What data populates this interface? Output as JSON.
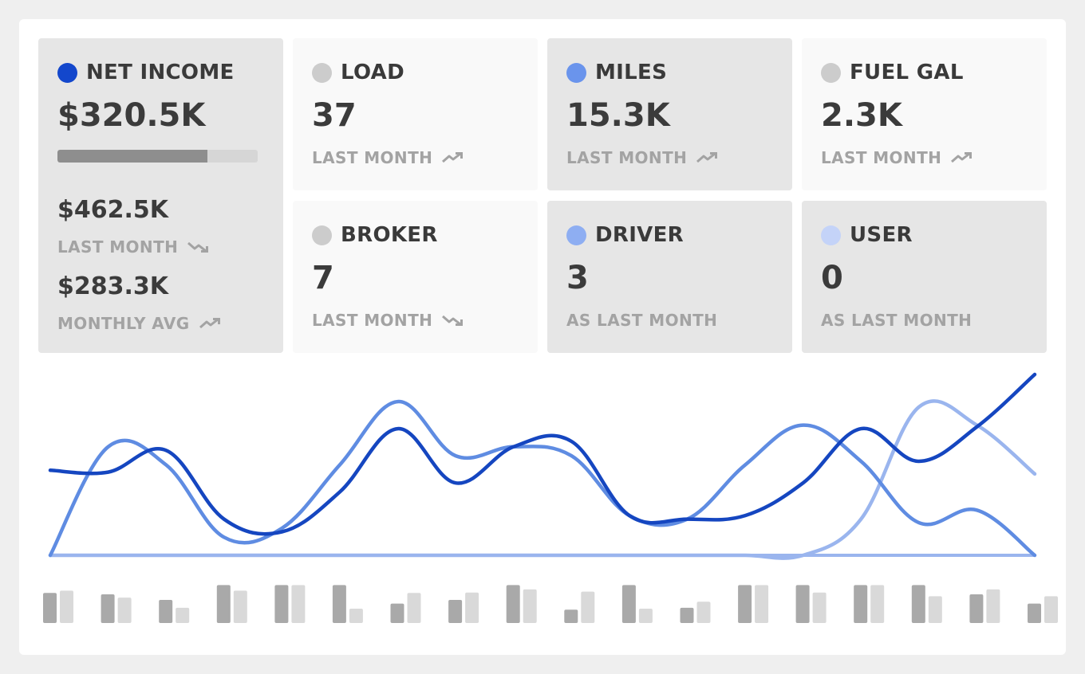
{
  "colors": {
    "net_income": "#1347cc",
    "miles": "#6a94ec",
    "driver": "#8eaef2",
    "user": "#c4d3f8",
    "neutral_dot": "#cccccc",
    "line_dark": "#1546c0",
    "line_mid": "#5f8ce2",
    "line_light": "#9ab5ee",
    "bar_dark": "#a9a9a9",
    "bar_light": "#d9d9d9"
  },
  "net_income": {
    "title": "NET INCOME",
    "value": "$320.5K",
    "progress": 0.75,
    "last_month_value": "$462.5K",
    "last_month_label": "LAST MONTH",
    "last_month_trend": "trend-down-icon",
    "avg_value": "$283.3K",
    "avg_label": "MONTHLY AVG",
    "avg_trend": "trend-up-icon"
  },
  "cards": [
    {
      "key": "load",
      "title": "LOAD",
      "value": "37",
      "sub": "LAST MONTH",
      "trend": "up"
    },
    {
      "key": "miles",
      "title": "MILES",
      "value": "15.3K",
      "sub": "LAST MONTH",
      "trend": "up"
    },
    {
      "key": "fuel",
      "title": "FUEL GAL",
      "value": "2.3K",
      "sub": "LAST MONTH",
      "trend": "up"
    },
    {
      "key": "broker",
      "title": "BROKER",
      "value": "7",
      "sub": "LAST MONTH",
      "trend": "down"
    },
    {
      "key": "driver",
      "title": "DRIVER",
      "value": "3",
      "sub": "AS LAST MONTH",
      "trend": "none"
    },
    {
      "key": "user",
      "title": "USER",
      "value": "0",
      "sub": "AS LAST MONTH",
      "trend": "none"
    }
  ],
  "chart_data": {
    "type": "line",
    "x": [
      0,
      1,
      2,
      3,
      4,
      5,
      6,
      7,
      8,
      9,
      10,
      11,
      12,
      13,
      14,
      15,
      16,
      17
    ],
    "series": [
      {
        "values": [
          0.47,
          0.46,
          0.58,
          0.2,
          0.13,
          0.35,
          0.7,
          0.4,
          0.6,
          0.63,
          0.22,
          0.2,
          0.22,
          0.4,
          0.7,
          0.52,
          0.71,
          1.0
        ],
        "color": "line_dark"
      },
      {
        "values": [
          0.0,
          0.6,
          0.5,
          0.1,
          0.15,
          0.5,
          0.85,
          0.55,
          0.6,
          0.55,
          0.22,
          0.2,
          0.5,
          0.72,
          0.52,
          0.18,
          0.25,
          0.0
        ],
        "color": "line_mid"
      },
      {
        "values": [
          0.0,
          0.0,
          0.0,
          0.0,
          0.0,
          0.0,
          0.0,
          0.0,
          0.0,
          0.0,
          0.0,
          0.0,
          0.0,
          0.0,
          0.2,
          0.82,
          0.72,
          0.45
        ],
        "color": "line_light"
      }
    ],
    "bars": [
      {
        "a": 0.65,
        "b": 0.7
      },
      {
        "a": 0.62,
        "b": 0.55
      },
      {
        "a": 0.5,
        "b": 0.33
      },
      {
        "a": 0.82,
        "b": 0.7
      },
      {
        "a": 0.82,
        "b": 0.82
      },
      {
        "a": 0.82,
        "b": 0.31
      },
      {
        "a": 0.42,
        "b": 0.65
      },
      {
        "a": 0.5,
        "b": 0.66
      },
      {
        "a": 0.82,
        "b": 0.73
      },
      {
        "a": 0.29,
        "b": 0.68
      },
      {
        "a": 0.82,
        "b": 0.31
      },
      {
        "a": 0.33,
        "b": 0.46
      },
      {
        "a": 0.82,
        "b": 0.82
      },
      {
        "a": 0.82,
        "b": 0.66
      },
      {
        "a": 0.82,
        "b": 0.82
      },
      {
        "a": 0.82,
        "b": 0.58
      },
      {
        "a": 0.62,
        "b": 0.73
      },
      {
        "a": 0.42,
        "b": 0.58
      }
    ]
  }
}
